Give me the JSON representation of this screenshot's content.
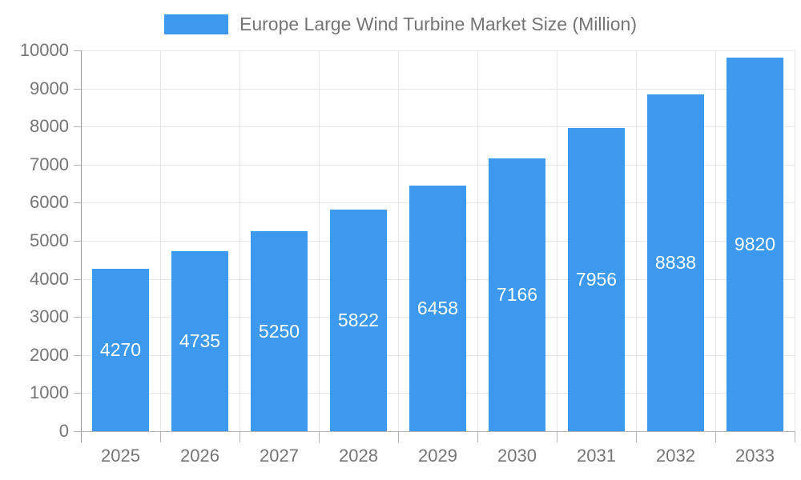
{
  "legend": {
    "label": "Europe Large Wind Turbine Market Size (Million)"
  },
  "chart_data": {
    "type": "bar",
    "title": "Europe Large Wind Turbine Market Size (Million)",
    "categories": [
      "2025",
      "2026",
      "2027",
      "2028",
      "2029",
      "2030",
      "2031",
      "2032",
      "2033"
    ],
    "values": [
      4270,
      4735,
      5250,
      5822,
      6458,
      7166,
      7956,
      8838,
      9820
    ],
    "series": [
      {
        "name": "Europe Large Wind Turbine Market Size (Million)",
        "values": [
          4270,
          4735,
          5250,
          5822,
          6458,
          7166,
          7956,
          8838,
          9820
        ]
      }
    ],
    "xlabel": "",
    "ylabel": "",
    "ylim": [
      0,
      10000
    ],
    "ytick_step": 1000,
    "grid": true,
    "legend_position": "top-center",
    "value_labels": "inside-center",
    "colors": {
      "bar": "#3d99ee",
      "value_label": "#ffffff",
      "axis_text": "#757575",
      "gridline": "#e6e6e6",
      "x_axis_line": "#b3b3b3",
      "y_axis_line": "#999999"
    }
  }
}
